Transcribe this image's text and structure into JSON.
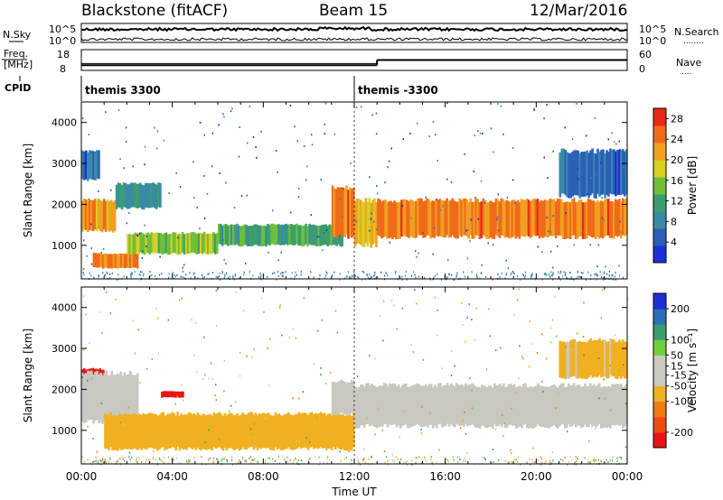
{
  "header": {
    "station": "Blackstone (fitACF)",
    "beam": "Beam 15",
    "date": "12/Mar/2016"
  },
  "noise_panel": {
    "left_label": "N.Sky",
    "right_label": "N.Search",
    "right_dots": "........",
    "tick_top": "10^5",
    "tick_bottom": "10^0"
  },
  "freq_panel": {
    "label_line1": "Freq.",
    "label_line2": "[MHz]",
    "left_ticks": [
      "18",
      "8"
    ],
    "right_ticks": [
      "60",
      "0"
    ],
    "right_label": "Nave",
    "right_dots": "....",
    "freq_steps": [
      {
        "start": 0,
        "end": 13,
        "freq": 10.5
      },
      {
        "start": 13,
        "end": 24,
        "freq": 13.0
      }
    ],
    "nave_steps": [
      {
        "start": 0,
        "end": 13,
        "nave": 20
      },
      {
        "start": 13,
        "end": 24,
        "nave": 30
      }
    ]
  },
  "cpid_panel": {
    "label": "CPID",
    "segments": [
      {
        "start": 0,
        "end": 12,
        "text": "themis 3300"
      },
      {
        "start": 12,
        "end": 24,
        "text": "themis -3300"
      }
    ]
  },
  "x_axis": {
    "label": "Time UT",
    "range": [
      0,
      24
    ],
    "tick_labels": [
      "00:00",
      "04:00",
      "08:00",
      "12:00",
      "16:00",
      "20:00",
      "00:00"
    ],
    "tick_values": [
      0,
      4,
      8,
      12,
      16,
      20,
      24
    ]
  },
  "chart_data": [
    {
      "type": "heatmap",
      "name": "Power",
      "ylabel": "Slant Range [km]",
      "ylim": [
        180,
        4500
      ],
      "yticks": [
        "1000",
        "2000",
        "3000",
        "4000"
      ],
      "ytick_values": [
        1000,
        2000,
        3000,
        4000
      ],
      "colorbar_label": "Power [dB]",
      "colorbar_ticks": [
        "4",
        "8",
        "12",
        "16",
        "20",
        "24",
        "28"
      ],
      "colorbar_tick_values": [
        4,
        8,
        12,
        16,
        20,
        24,
        28
      ],
      "colorbar_range": [
        0,
        30
      ],
      "colors": [
        "#1f2fd6",
        "#2c5fb8",
        "#3a8aa6",
        "#3a9e6e",
        "#6fbf3a",
        "#d8d020",
        "#f0a020",
        "#f06a1a",
        "#e82a14"
      ],
      "bands": [
        {
          "t0": 0.0,
          "t1": 1.5,
          "r0": 1350,
          "r1": 2100,
          "p": 22
        },
        {
          "t0": 1.5,
          "t1": 3.5,
          "r0": 1900,
          "r1": 2500,
          "p": 10
        },
        {
          "t0": 0.5,
          "t1": 2.5,
          "r0": 450,
          "r1": 800,
          "p": 24
        },
        {
          "t0": 2.0,
          "t1": 6.0,
          "r0": 800,
          "r1": 1300,
          "p": 16
        },
        {
          "t0": 6.0,
          "t1": 11.5,
          "r0": 1000,
          "r1": 1500,
          "p": 12
        },
        {
          "t0": 11.0,
          "t1": 12.0,
          "r0": 1200,
          "r1": 2400,
          "p": 24
        },
        {
          "t0": 12.0,
          "t1": 13.0,
          "r0": 1000,
          "r1": 2100,
          "p": 20
        },
        {
          "t0": 13.0,
          "t1": 24.0,
          "r0": 1200,
          "r1": 2100,
          "p": 24
        },
        {
          "t0": 21.0,
          "t1": 24.0,
          "r0": 2200,
          "r1": 3300,
          "p": 6
        },
        {
          "t0": 0.0,
          "t1": 0.8,
          "r0": 2600,
          "r1": 3300,
          "p": 6
        }
      ]
    },
    {
      "type": "heatmap",
      "name": "Velocity",
      "ylabel": "Slant Range [km]",
      "ylim": [
        180,
        4500
      ],
      "yticks": [
        "1000",
        "2000",
        "3000",
        "4000"
      ],
      "ytick_values": [
        1000,
        2000,
        3000,
        4000
      ],
      "colorbar_label": "Velocity [m s⁻¹]",
      "colorbar_ticks": [
        "200",
        "100",
        "50",
        "15",
        "-15",
        "-50",
        "-100",
        "-200"
      ],
      "colorbar_tick_values": [
        200,
        100,
        50,
        15,
        -15,
        -50,
        -100,
        -200
      ],
      "colorbar_range": [
        -250,
        250
      ],
      "colors": [
        "#e81414",
        "#f04a14",
        "#f07a14",
        "#f0b020",
        "#c8c8c0",
        "#c8c8c0",
        "#6fcf3a",
        "#3a9e6e",
        "#2a6fb8",
        "#1f2fd6"
      ],
      "bands": [
        {
          "t0": 0.0,
          "t1": 1.0,
          "r0": 2100,
          "r1": 2500,
          "v": -250
        },
        {
          "t0": 0.0,
          "t1": 2.5,
          "r0": 1200,
          "r1": 2400,
          "v": 0
        },
        {
          "t0": 1.0,
          "t1": 12.0,
          "r0": 550,
          "r1": 1400,
          "v": -70
        },
        {
          "t0": 3.5,
          "t1": 4.5,
          "r0": 1800,
          "r1": 1950,
          "v": -250
        },
        {
          "t0": 11.0,
          "t1": 12.0,
          "r0": 1400,
          "r1": 2200,
          "v": 30
        },
        {
          "t0": 12.0,
          "t1": 24.0,
          "r0": 1100,
          "r1": 2100,
          "v": 0
        },
        {
          "t0": 21.0,
          "t1": 24.0,
          "r0": 2300,
          "r1": 3200,
          "v": -60
        }
      ]
    }
  ]
}
